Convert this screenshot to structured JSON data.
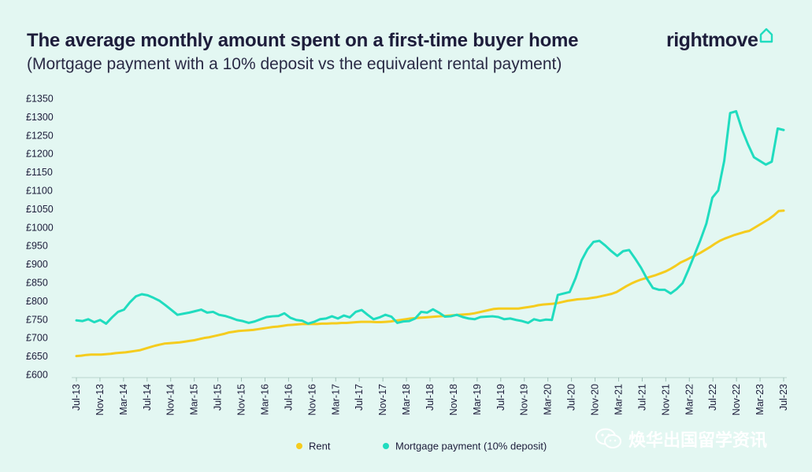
{
  "header": {
    "title": "The average monthly amount spent on a first-time buyer home",
    "subtitle": "(Mortgage payment with a 10% deposit vs the equivalent rental payment)"
  },
  "logo": {
    "text": "rightmove",
    "icon": "house-outline-icon"
  },
  "watermark": {
    "text": "焕华出国留学资讯",
    "icon": "wechat-icon"
  },
  "colors": {
    "background": "#e3f7f2",
    "rent": "#f5cc1e",
    "mortgage": "#20dcbf",
    "text": "#1d1d3b"
  },
  "chart_data": {
    "type": "line",
    "title": "The average monthly amount spent on a first-time buyer home",
    "subtitle": "(Mortgage payment with a 10% deposit vs the equivalent rental payment)",
    "xlabel": "",
    "ylabel": "",
    "ylim": [
      600,
      1350
    ],
    "yticks": [
      "£600",
      "£650",
      "£700",
      "£750",
      "£800",
      "£850",
      "£900",
      "£950",
      "£1000",
      "£1050",
      "£1100",
      "£1150",
      "£1200",
      "£1250",
      "£1300",
      "£1350"
    ],
    "xticks": [
      "Jul-13",
      "Nov-13",
      "Mar-14",
      "Jul-14",
      "Nov-14",
      "Mar-15",
      "Jul-15",
      "Nov-15",
      "Mar-16",
      "Jul-16",
      "Nov-16",
      "Mar-17",
      "Jul-17",
      "Nov-17",
      "Mar-18",
      "Jul-18",
      "Nov-18",
      "Mar-19",
      "Jul-19",
      "Nov-19",
      "Mar-20",
      "Jul-20",
      "Nov-20",
      "Mar-21",
      "Jul-21",
      "Nov-21",
      "Mar-22",
      "Jul-22",
      "Nov-22",
      "Mar-23",
      "Jul-23"
    ],
    "grid": false,
    "legend_position": "bottom",
    "series": [
      {
        "name": "Rent",
        "color": "#f5cc1e",
        "values": [
          650,
          651,
          653,
          654,
          654,
          654,
          655,
          656,
          658,
          659,
          660,
          662,
          664,
          666,
          670,
          674,
          678,
          681,
          684,
          685,
          686,
          687,
          689,
          691,
          693,
          696,
          699,
          701,
          704,
          707,
          710,
          714,
          716,
          718,
          719,
          720,
          721,
          723,
          725,
          727,
          729,
          730,
          732,
          734,
          735,
          736,
          737,
          737,
          737,
          737,
          738,
          738,
          739,
          739,
          740,
          740,
          741,
          742,
          743,
          743,
          743,
          742,
          742,
          743,
          744,
          746,
          748,
          750,
          752,
          753,
          754,
          755,
          756,
          757,
          758,
          759,
          760,
          761,
          762,
          763,
          764,
          766,
          769,
          772,
          775,
          778,
          779,
          779,
          779,
          779,
          779,
          781,
          783,
          785,
          788,
          790,
          791,
          792,
          794,
          797,
          800,
          802,
          804,
          805,
          806,
          808,
          810,
          813,
          816,
          819,
          824,
          832,
          840,
          847,
          853,
          858,
          862,
          866,
          870,
          875,
          880,
          887,
          895,
          904,
          910,
          917,
          923,
          930,
          938,
          946,
          955,
          963,
          969,
          974,
          979,
          983,
          987,
          990,
          998,
          1006,
          1014,
          1022,
          1032,
          1044,
          1045
        ]
      },
      {
        "name": "Mortgage payment (10% deposit)",
        "color": "#20dcbf",
        "values": [
          747,
          745,
          750,
          742,
          748,
          738,
          755,
          770,
          776,
          796,
          812,
          818,
          815,
          808,
          800,
          788,
          775,
          762,
          765,
          768,
          772,
          776,
          768,
          770,
          762,
          759,
          754,
          748,
          745,
          740,
          744,
          750,
          756,
          758,
          759,
          766,
          754,
          748,
          746,
          738,
          743,
          750,
          752,
          758,
          752,
          760,
          755,
          770,
          775,
          762,
          750,
          755,
          762,
          757,
          740,
          744,
          745,
          752,
          770,
          768,
          777,
          768,
          757,
          758,
          762,
          756,
          752,
          750,
          756,
          757,
          758,
          756,
          750,
          752,
          748,
          745,
          740,
          750,
          746,
          749,
          748,
          816,
          820,
          824,
          862,
          910,
          940,
          960,
          963,
          950,
          935,
          922,
          935,
          938,
          915,
          890,
          860,
          835,
          830,
          830,
          820,
          832,
          848,
          885,
          925,
          965,
          1010,
          1080,
          1100,
          1180,
          1310,
          1315,
          1265,
          1225,
          1190,
          1180,
          1170,
          1178,
          1268,
          1264
        ]
      }
    ]
  }
}
